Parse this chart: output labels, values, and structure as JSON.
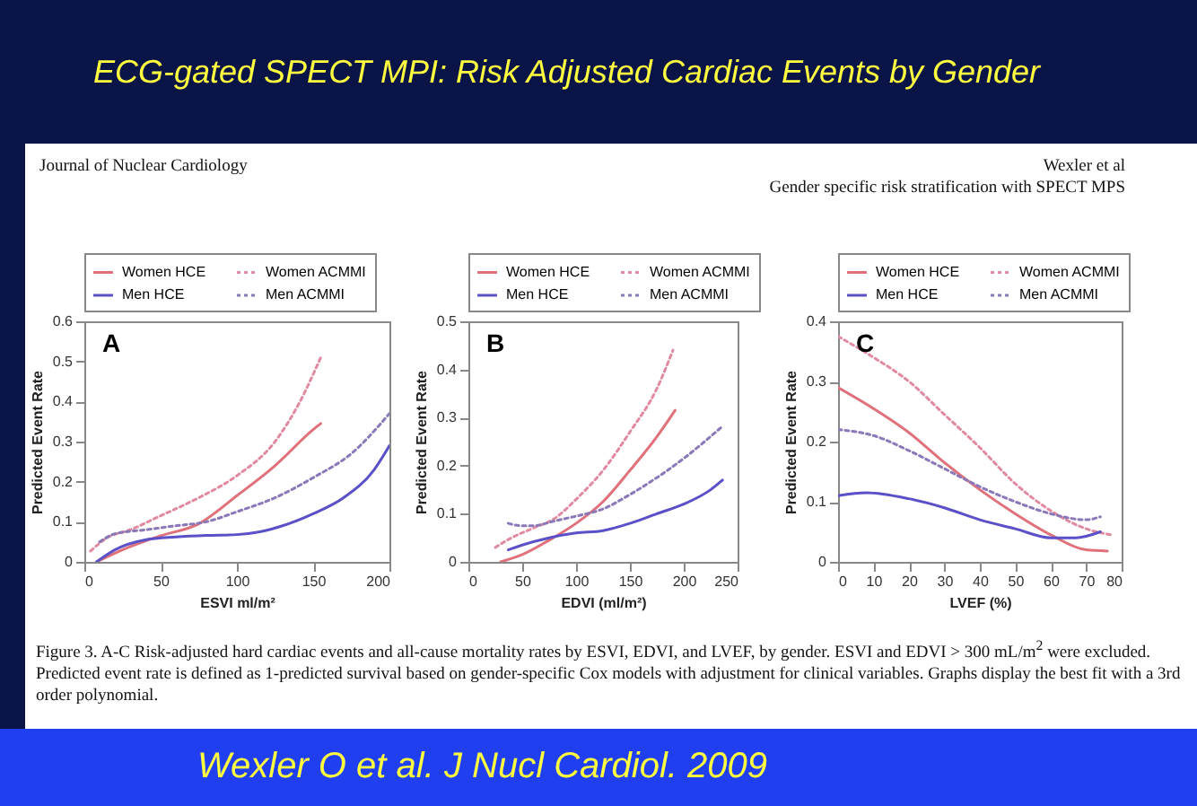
{
  "chart_data": [
    {
      "type": "other",
      "title": "ECG-gated SPECT MPI: Risk Adjusted Cardiac Events by Gender",
      "annotations": [
        "Journal of Nuclear Cardiology",
        "Wexler et al",
        "Gender specific risk stratification with SPECT MPS",
        "Figure 3. A-C Risk-adjusted hard cardiac events and all-cause mortality rates by ESVI, EDVI, and LVEF, by gender. ESVI and EDVI > 300 mL/m$^{2}$ were excluded. Predicted event rate is defined as 1-predicted survival based on gender-specific Cox models with adjustment for clinical variables. Graphs display the best fit with a 3rd order polynomial.",
        "Wexler O et al. J Nucl Cardiol. 2009"
      ]
    },
    {
      "type": "line",
      "title": "A",
      "xlabel": "ESVI ml/m²",
      "ylabel": "Predicted Event Rate",
      "xlim": [
        0,
        200
      ],
      "xticks": [
        0,
        50,
        100,
        150,
        200
      ],
      "ylim": [
        0,
        0.6
      ],
      "yticks": [
        0,
        0.1,
        0.2,
        0.3,
        0.4,
        0.5,
        0.6
      ],
      "legend": "top",
      "series": [
        {
          "name": "Women HCE",
          "color": "#e0707a",
          "line_style": "solid",
          "x": [
            8,
            25,
            50,
            75,
            100,
            125,
            150,
            155
          ],
          "values": [
            0,
            0.03,
            0.065,
            0.095,
            0.165,
            0.24,
            0.33,
            0.345
          ]
        },
        {
          "name": "Women ACMMI",
          "color": "#e08aa0",
          "line_style": "dotted",
          "x": [
            4,
            15,
            30,
            50,
            75,
            100,
            125,
            140,
            155
          ],
          "values": [
            0.027,
            0.06,
            0.08,
            0.115,
            0.16,
            0.215,
            0.3,
            0.39,
            0.51
          ]
        },
        {
          "name": "Men HCE",
          "color": "#5a50c8",
          "line_style": "solid",
          "x": [
            8,
            20,
            40,
            60,
            80,
            100,
            115,
            130,
            150,
            170,
            190,
            200
          ],
          "values": [
            0,
            0.03,
            0.055,
            0.062,
            0.066,
            0.068,
            0.075,
            0.09,
            0.12,
            0.16,
            0.23,
            0.29
          ]
        },
        {
          "name": "Men ACMMI",
          "color": "#8a78b8",
          "line_style": "dotted",
          "x": [
            10,
            20,
            40,
            60,
            80,
            100,
            125,
            150,
            175,
            200
          ],
          "values": [
            0.05,
            0.07,
            0.08,
            0.09,
            0.1,
            0.125,
            0.16,
            0.21,
            0.27,
            0.37
          ]
        }
      ]
    },
    {
      "type": "line",
      "title": "B",
      "xlabel": "EDVI (ml/m²)",
      "ylabel": "Predicted Event Rate",
      "xlim": [
        0,
        250
      ],
      "xticks": [
        0,
        50,
        100,
        150,
        200,
        250
      ],
      "ylim": [
        0,
        0.5
      ],
      "yticks": [
        0,
        0.1,
        0.2,
        0.3,
        0.4,
        0.5
      ],
      "legend": "top",
      "series": [
        {
          "name": "Women HCE",
          "color": "#e0707a",
          "line_style": "solid",
          "x": [
            30,
            50,
            75,
            100,
            125,
            150,
            175,
            192
          ],
          "values": [
            0,
            0.015,
            0.045,
            0.08,
            0.125,
            0.19,
            0.26,
            0.315
          ]
        },
        {
          "name": "Women ACMMI",
          "color": "#e08aa0",
          "line_style": "dotted",
          "x": [
            25,
            40,
            60,
            80,
            100,
            125,
            150,
            175,
            190
          ],
          "values": [
            0.03,
            0.05,
            0.07,
            0.09,
            0.13,
            0.19,
            0.27,
            0.36,
            0.44
          ]
        },
        {
          "name": "Men HCE",
          "color": "#5a50c8",
          "line_style": "solid",
          "x": [
            37,
            50,
            75,
            100,
            125,
            150,
            175,
            200,
            225,
            236
          ],
          "values": [
            0.025,
            0.035,
            0.05,
            0.06,
            0.065,
            0.08,
            0.1,
            0.12,
            0.15,
            0.17
          ]
        },
        {
          "name": "Men ACMMI",
          "color": "#8a78b8",
          "line_style": "dotted",
          "x": [
            37,
            50,
            60,
            80,
            100,
            125,
            150,
            175,
            200,
            235
          ],
          "values": [
            0.08,
            0.075,
            0.075,
            0.085,
            0.095,
            0.11,
            0.14,
            0.175,
            0.215,
            0.28
          ]
        }
      ]
    },
    {
      "type": "line",
      "title": "C",
      "xlabel": "LVEF (%)",
      "ylabel": "Predicted Event Rate",
      "xlim": [
        0,
        80
      ],
      "xticks": [
        0,
        10,
        20,
        30,
        40,
        50,
        60,
        70,
        80
      ],
      "ylim": [
        0,
        0.4
      ],
      "yticks": [
        0,
        0.1,
        0.2,
        0.3,
        0.4
      ],
      "legend": "top",
      "series": [
        {
          "name": "Women HCE",
          "color": "#e0707a",
          "line_style": "solid",
          "x": [
            0,
            10,
            20,
            30,
            40,
            50,
            60,
            70,
            76
          ],
          "values": [
            0.29,
            0.255,
            0.215,
            0.165,
            0.12,
            0.08,
            0.045,
            0.02,
            0.018
          ]
        },
        {
          "name": "Women ACMMI",
          "color": "#e08aa0",
          "line_style": "dotted",
          "x": [
            0,
            10,
            20,
            30,
            40,
            50,
            60,
            70,
            77
          ],
          "values": [
            0.375,
            0.34,
            0.3,
            0.245,
            0.19,
            0.13,
            0.085,
            0.055,
            0.045
          ]
        },
        {
          "name": "Men HCE",
          "color": "#5a50c8",
          "line_style": "solid",
          "x": [
            0,
            8,
            20,
            30,
            40,
            50,
            60,
            67,
            74
          ],
          "values": [
            0.11,
            0.115,
            0.105,
            0.09,
            0.07,
            0.055,
            0.04,
            0.04,
            0.05
          ]
        },
        {
          "name": "Men ACMMI",
          "color": "#8a78b8",
          "line_style": "dotted",
          "x": [
            0,
            10,
            20,
            30,
            40,
            50,
            60,
            70,
            74
          ],
          "values": [
            0.22,
            0.21,
            0.185,
            0.155,
            0.125,
            0.1,
            0.08,
            0.07,
            0.075
          ]
        }
      ]
    }
  ]
}
